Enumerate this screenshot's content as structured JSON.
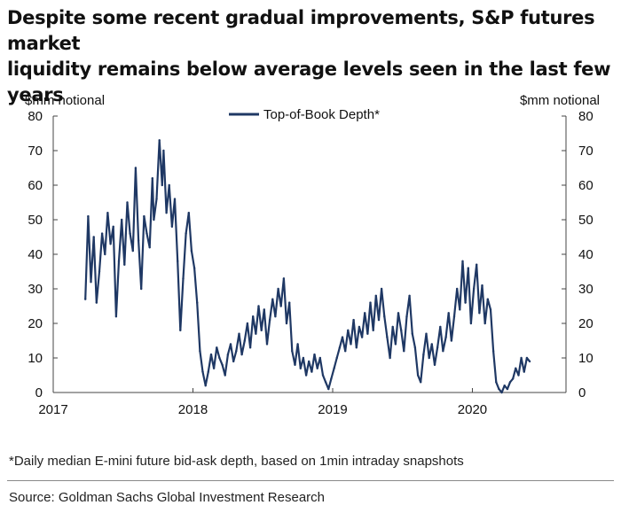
{
  "title_lines": [
    "Despite some recent gradual improvements, S&P futures market",
    "liquidity remains below average levels seen in the last few years"
  ],
  "footnote": "*Daily median E-mini future bid-ask depth, based on 1min intraday snapshots",
  "source": "Source: Goldman Sachs Global Investment Research",
  "chart_data": {
    "type": "line",
    "y_axis_left_label": "$mm notional",
    "y_axis_right_label": "$mm notional",
    "ylim": [
      0,
      80
    ],
    "yticks": [
      "0",
      "10",
      "20",
      "30",
      "40",
      "50",
      "60",
      "70",
      "80"
    ],
    "xlim": [
      2017,
      2020.67
    ],
    "xticks": [
      "2017",
      "2018",
      "2019",
      "2020"
    ],
    "legend_position": "top-center",
    "grid": false,
    "series": [
      {
        "name": "Top-of-Book Depth*",
        "color": "#1f3864",
        "points": [
          [
            2017.23,
            27
          ],
          [
            2017.25,
            51
          ],
          [
            2017.27,
            32
          ],
          [
            2017.29,
            45
          ],
          [
            2017.31,
            26
          ],
          [
            2017.33,
            35
          ],
          [
            2017.35,
            46
          ],
          [
            2017.37,
            40
          ],
          [
            2017.39,
            52
          ],
          [
            2017.41,
            43
          ],
          [
            2017.43,
            48
          ],
          [
            2017.45,
            22
          ],
          [
            2017.47,
            38
          ],
          [
            2017.49,
            50
          ],
          [
            2017.51,
            37
          ],
          [
            2017.53,
            55
          ],
          [
            2017.55,
            46
          ],
          [
            2017.57,
            41
          ],
          [
            2017.59,
            65
          ],
          [
            2017.61,
            44
          ],
          [
            2017.63,
            30
          ],
          [
            2017.65,
            51
          ],
          [
            2017.67,
            46
          ],
          [
            2017.69,
            42
          ],
          [
            2017.71,
            62
          ],
          [
            2017.72,
            50
          ],
          [
            2017.74,
            56
          ],
          [
            2017.76,
            73
          ],
          [
            2017.78,
            60
          ],
          [
            2017.79,
            70
          ],
          [
            2017.81,
            52
          ],
          [
            2017.83,
            60
          ],
          [
            2017.85,
            48
          ],
          [
            2017.87,
            56
          ],
          [
            2017.89,
            38
          ],
          [
            2017.91,
            18
          ],
          [
            2017.93,
            33
          ],
          [
            2017.95,
            46
          ],
          [
            2017.97,
            52
          ],
          [
            2017.99,
            41
          ],
          [
            2018.01,
            36
          ],
          [
            2018.03,
            26
          ],
          [
            2018.05,
            12
          ],
          [
            2018.07,
            6
          ],
          [
            2018.09,
            2
          ],
          [
            2018.11,
            6
          ],
          [
            2018.13,
            11
          ],
          [
            2018.15,
            7
          ],
          [
            2018.17,
            13
          ],
          [
            2018.19,
            10
          ],
          [
            2018.21,
            8
          ],
          [
            2018.23,
            5
          ],
          [
            2018.25,
            11
          ],
          [
            2018.27,
            14
          ],
          [
            2018.29,
            9
          ],
          [
            2018.31,
            12
          ],
          [
            2018.33,
            17
          ],
          [
            2018.35,
            11
          ],
          [
            2018.37,
            15
          ],
          [
            2018.39,
            20
          ],
          [
            2018.41,
            13
          ],
          [
            2018.43,
            22
          ],
          [
            2018.45,
            17
          ],
          [
            2018.47,
            25
          ],
          [
            2018.49,
            18
          ],
          [
            2018.51,
            24
          ],
          [
            2018.53,
            14
          ],
          [
            2018.55,
            21
          ],
          [
            2018.57,
            27
          ],
          [
            2018.59,
            22
          ],
          [
            2018.61,
            30
          ],
          [
            2018.63,
            25
          ],
          [
            2018.65,
            33
          ],
          [
            2018.67,
            20
          ],
          [
            2018.69,
            26
          ],
          [
            2018.71,
            12
          ],
          [
            2018.73,
            8
          ],
          [
            2018.75,
            14
          ],
          [
            2018.77,
            7
          ],
          [
            2018.79,
            10
          ],
          [
            2018.81,
            5
          ],
          [
            2018.83,
            9
          ],
          [
            2018.85,
            6
          ],
          [
            2018.87,
            11
          ],
          [
            2018.89,
            7
          ],
          [
            2018.91,
            10
          ],
          [
            2018.93,
            5
          ],
          [
            2018.95,
            3
          ],
          [
            2018.97,
            1
          ],
          [
            2018.99,
            4
          ],
          [
            2019.01,
            7
          ],
          [
            2019.03,
            10
          ],
          [
            2019.05,
            13
          ],
          [
            2019.07,
            16
          ],
          [
            2019.09,
            12
          ],
          [
            2019.11,
            18
          ],
          [
            2019.13,
            14
          ],
          [
            2019.15,
            21
          ],
          [
            2019.17,
            13
          ],
          [
            2019.19,
            19
          ],
          [
            2019.21,
            16
          ],
          [
            2019.23,
            23
          ],
          [
            2019.25,
            17
          ],
          [
            2019.27,
            26
          ],
          [
            2019.29,
            18
          ],
          [
            2019.31,
            28
          ],
          [
            2019.33,
            21
          ],
          [
            2019.35,
            30
          ],
          [
            2019.37,
            22
          ],
          [
            2019.39,
            16
          ],
          [
            2019.41,
            10
          ],
          [
            2019.43,
            19
          ],
          [
            2019.45,
            14
          ],
          [
            2019.47,
            23
          ],
          [
            2019.49,
            18
          ],
          [
            2019.51,
            12
          ],
          [
            2019.53,
            22
          ],
          [
            2019.55,
            28
          ],
          [
            2019.57,
            17
          ],
          [
            2019.59,
            13
          ],
          [
            2019.61,
            5
          ],
          [
            2019.63,
            3
          ],
          [
            2019.65,
            11
          ],
          [
            2019.67,
            17
          ],
          [
            2019.69,
            10
          ],
          [
            2019.71,
            14
          ],
          [
            2019.73,
            8
          ],
          [
            2019.75,
            13
          ],
          [
            2019.77,
            19
          ],
          [
            2019.79,
            12
          ],
          [
            2019.81,
            16
          ],
          [
            2019.83,
            23
          ],
          [
            2019.85,
            15
          ],
          [
            2019.87,
            22
          ],
          [
            2019.89,
            30
          ],
          [
            2019.91,
            24
          ],
          [
            2019.93,
            38
          ],
          [
            2019.95,
            26
          ],
          [
            2019.97,
            36
          ],
          [
            2019.99,
            20
          ],
          [
            2020.01,
            30
          ],
          [
            2020.03,
            37
          ],
          [
            2020.05,
            23
          ],
          [
            2020.07,
            31
          ],
          [
            2020.09,
            20
          ],
          [
            2020.11,
            27
          ],
          [
            2020.13,
            24
          ],
          [
            2020.15,
            12
          ],
          [
            2020.17,
            3
          ],
          [
            2020.19,
            1
          ],
          [
            2020.21,
            0
          ],
          [
            2020.23,
            2
          ],
          [
            2020.25,
            1
          ],
          [
            2020.27,
            3
          ],
          [
            2020.29,
            4
          ],
          [
            2020.31,
            7
          ],
          [
            2020.33,
            5
          ],
          [
            2020.35,
            10
          ],
          [
            2020.37,
            6
          ],
          [
            2020.39,
            10
          ],
          [
            2020.41,
            9
          ]
        ]
      }
    ]
  }
}
